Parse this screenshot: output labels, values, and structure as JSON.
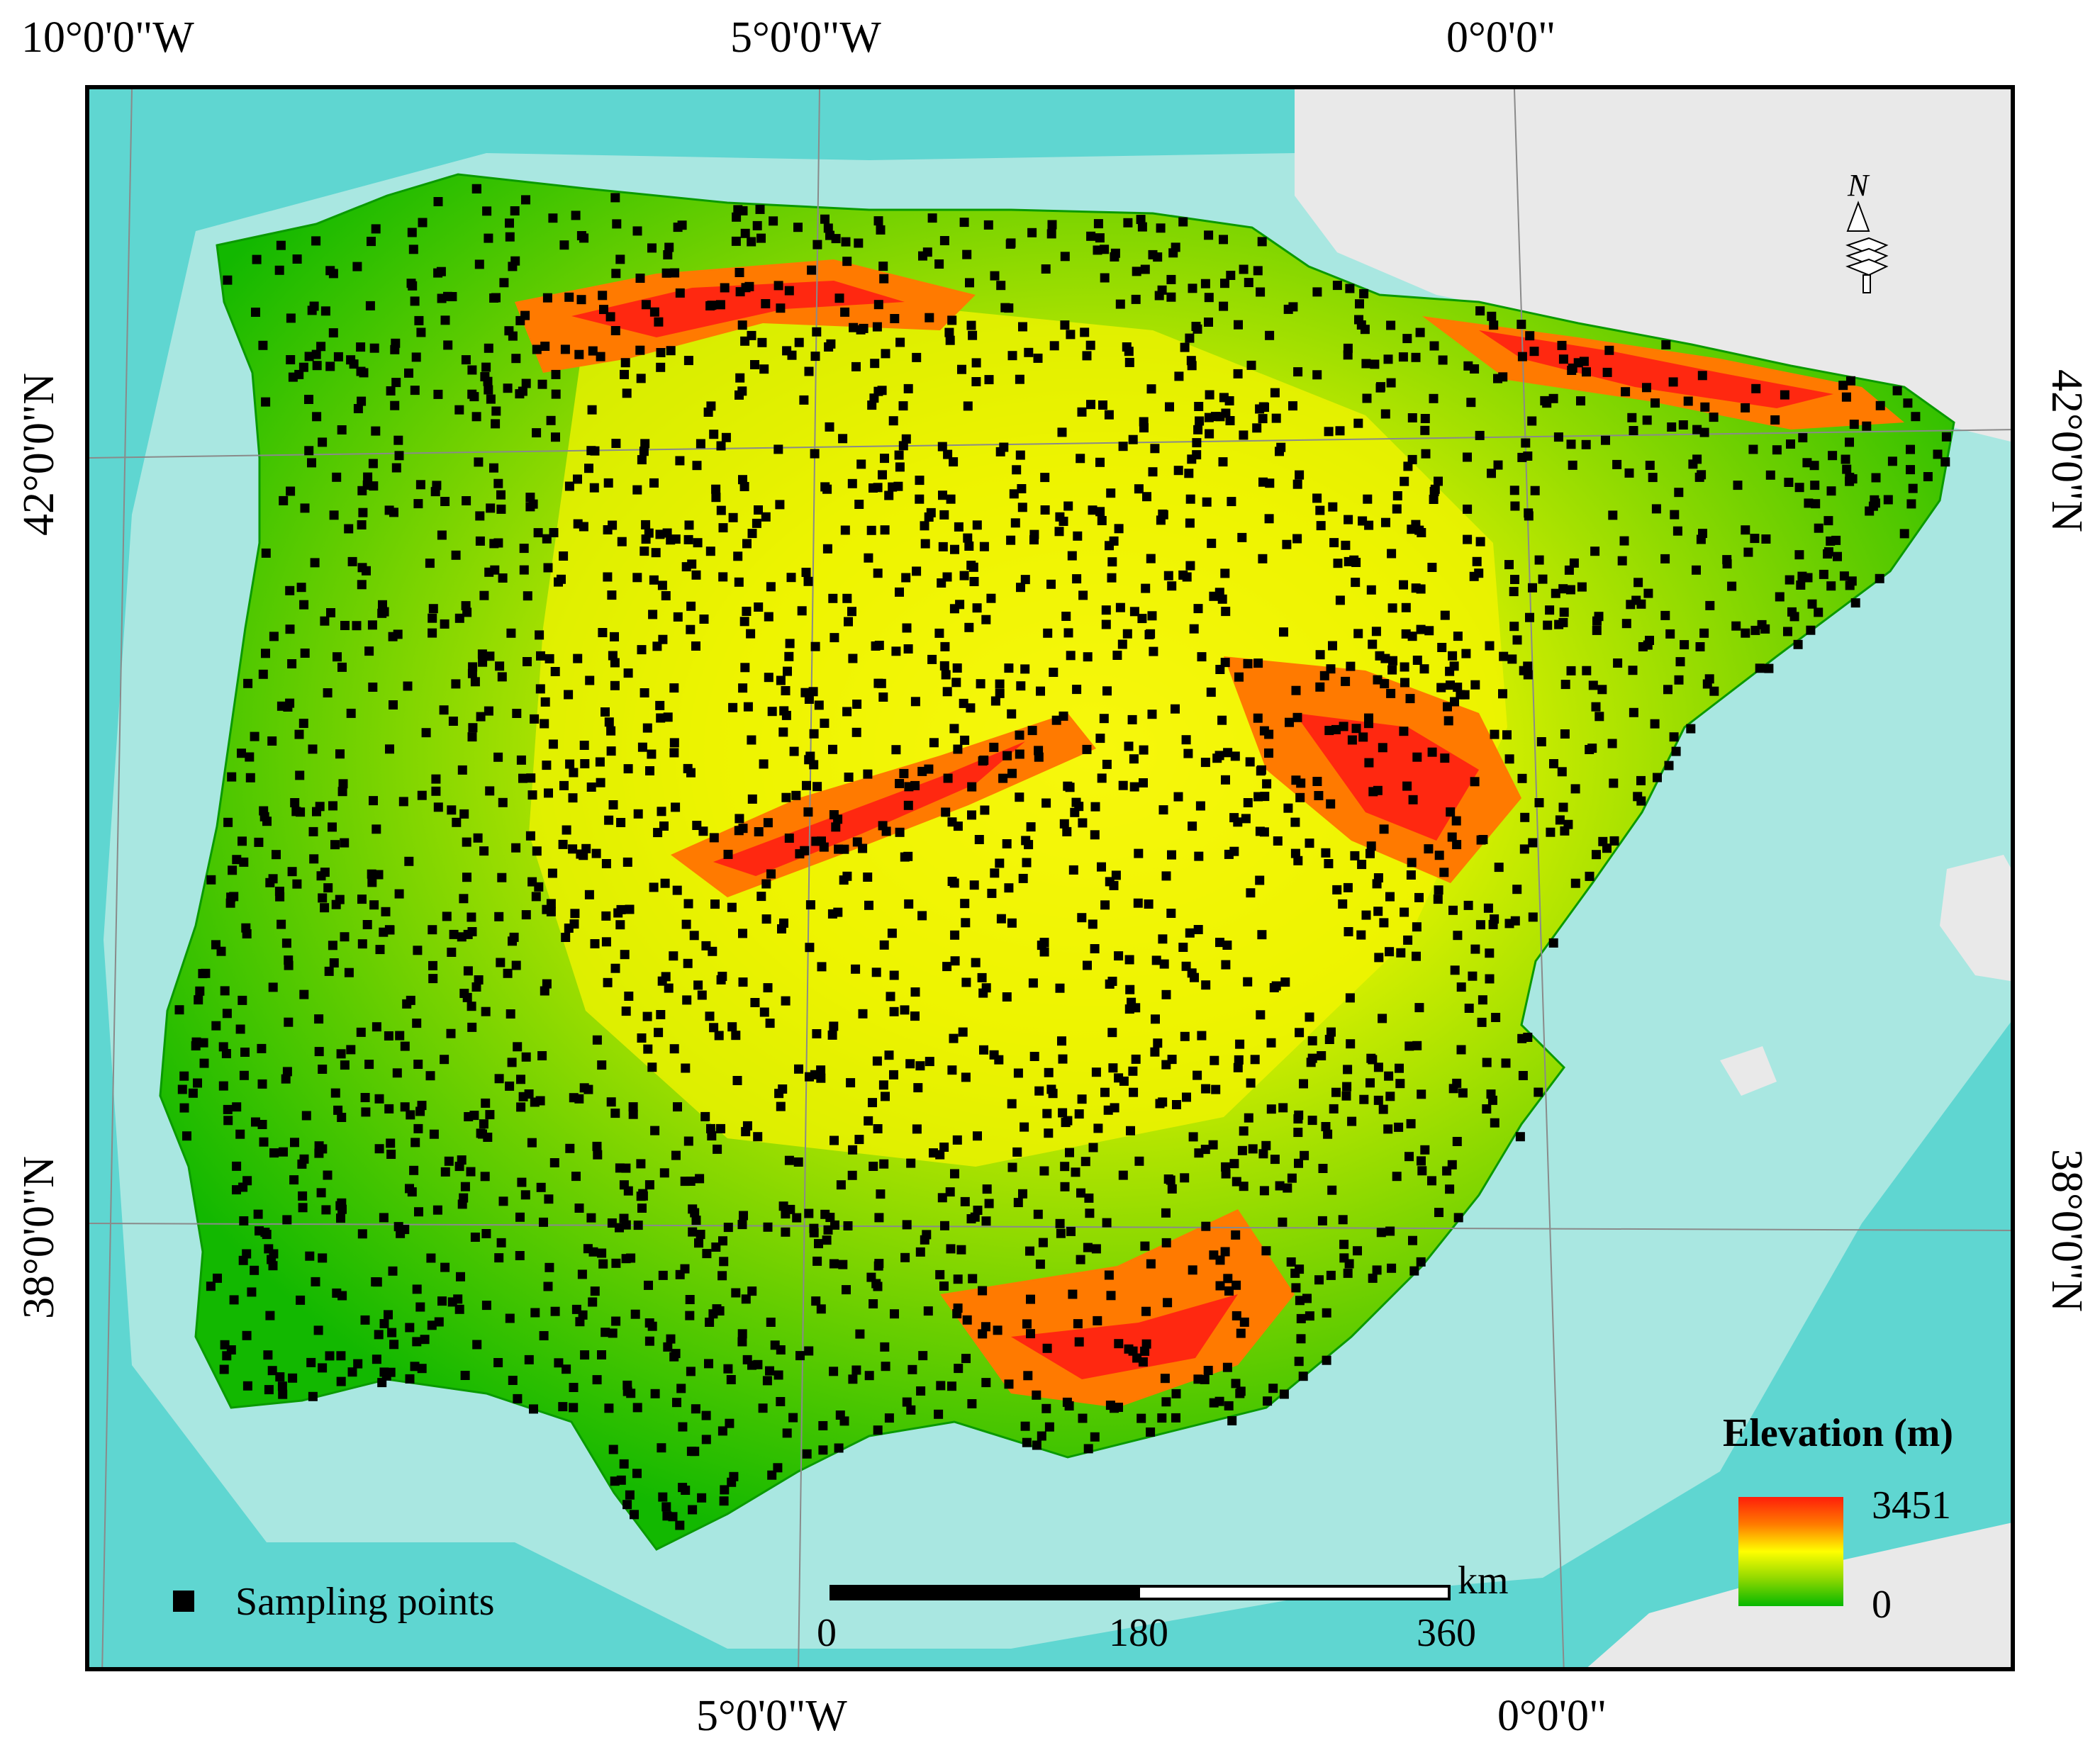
{
  "map": {
    "top_longitudes": [
      "10°0'0\"W",
      "5°0'0\"W",
      "0°0'0\""
    ],
    "bottom_longitudes": [
      "5°0'0\"W",
      "0°0'0\""
    ],
    "left_latitudes": [
      "42°0'0\"N",
      "38°0'0\"N"
    ],
    "right_latitudes": [
      "42°0'0\"N",
      "38°0'0\"N"
    ],
    "north_arrow_label": "N"
  },
  "legend": {
    "title": "Elevation (m)",
    "max_value": "3451",
    "min_value": "0",
    "colors": [
      "#ff1e0a",
      "#ff7a00",
      "#ffff00",
      "#8fd800",
      "#06b800"
    ]
  },
  "sampling": {
    "label": "Sampling points"
  },
  "scale": {
    "unit": "km",
    "ticks": [
      "0",
      "180",
      "360"
    ]
  },
  "colors": {
    "sea_deep": "#5fd6d1",
    "sea_shelf": "#a9e7e1",
    "land_other": "#e8e8e8",
    "lowland": "#06b800",
    "midland": "#ffff00",
    "highland": "#ff1e0a"
  }
}
